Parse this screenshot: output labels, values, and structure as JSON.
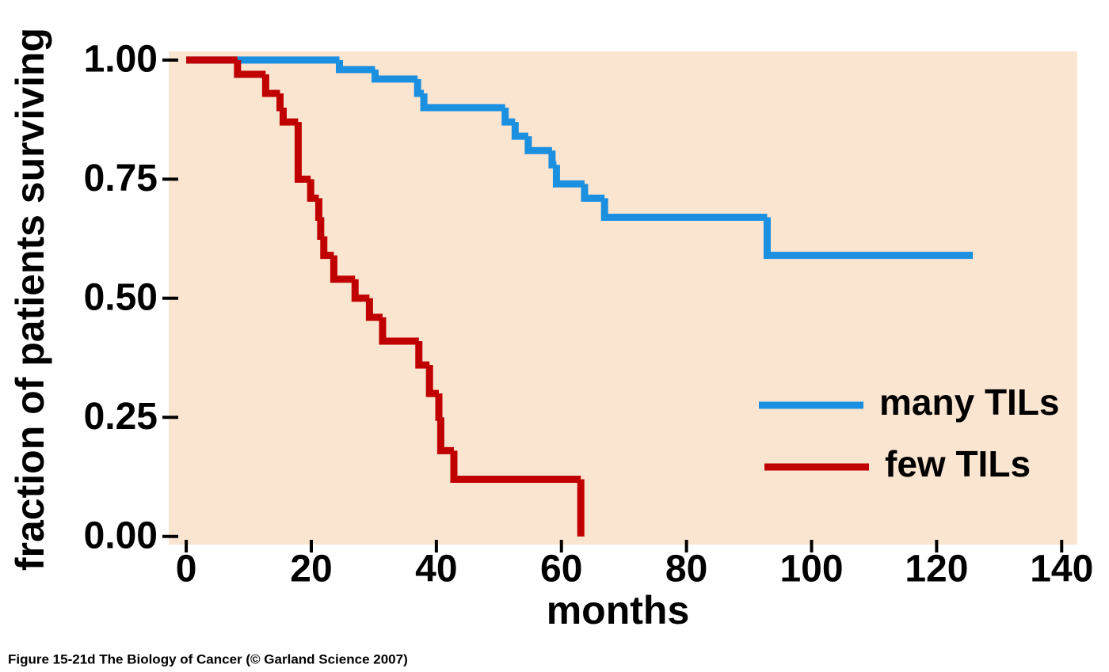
{
  "chart_data": {
    "type": "step",
    "xlabel": "months",
    "ylabel": "fraction of patients surviving",
    "caption": "Figure 15-21d  The Biology of Cancer (© Garland Science 2007)",
    "xlim": [
      -2.8,
      142.5
    ],
    "ylim": [
      -0.017,
      1.018
    ],
    "xticks": [
      0,
      20,
      40,
      60,
      80,
      100,
      120,
      140
    ],
    "yticks": [
      {
        "value": 0,
        "label": "0.00"
      },
      {
        "value": 0.25,
        "label": "0.25"
      },
      {
        "value": 0.5,
        "label": "0.50"
      },
      {
        "value": 0.75,
        "label": "0.75"
      },
      {
        "value": 1,
        "label": "1.00"
      }
    ],
    "background": "#fae5d1",
    "series": [
      {
        "name": "many TILs",
        "color": "#1b8fe0",
        "x": [
          0,
          24.5,
          30.2,
          37,
          38,
          51,
          52.6,
          54.7,
          58.5,
          59.2,
          63.7,
          66.9,
          92.9,
          125.8
        ],
        "values": [
          1.0,
          0.98,
          0.96,
          0.93,
          0.9,
          0.87,
          0.84,
          0.81,
          0.78,
          0.74,
          0.71,
          0.67,
          0.59,
          0.59
        ]
      },
      {
        "name": "few TILs",
        "color": "#c00000",
        "x": [
          0,
          8.2,
          12.7,
          15,
          15.5,
          17.9,
          19.9,
          21.2,
          21.5,
          22,
          23.6,
          27,
          29.3,
          31.4,
          37.2,
          38.9,
          40.4,
          40.7,
          42.8,
          63.1
        ],
        "values": [
          1.0,
          0.97,
          0.93,
          0.9,
          0.87,
          0.75,
          0.71,
          0.67,
          0.63,
          0.59,
          0.54,
          0.5,
          0.46,
          0.41,
          0.36,
          0.3,
          0.25,
          0.18,
          0.12,
          0.0
        ]
      }
    ]
  }
}
